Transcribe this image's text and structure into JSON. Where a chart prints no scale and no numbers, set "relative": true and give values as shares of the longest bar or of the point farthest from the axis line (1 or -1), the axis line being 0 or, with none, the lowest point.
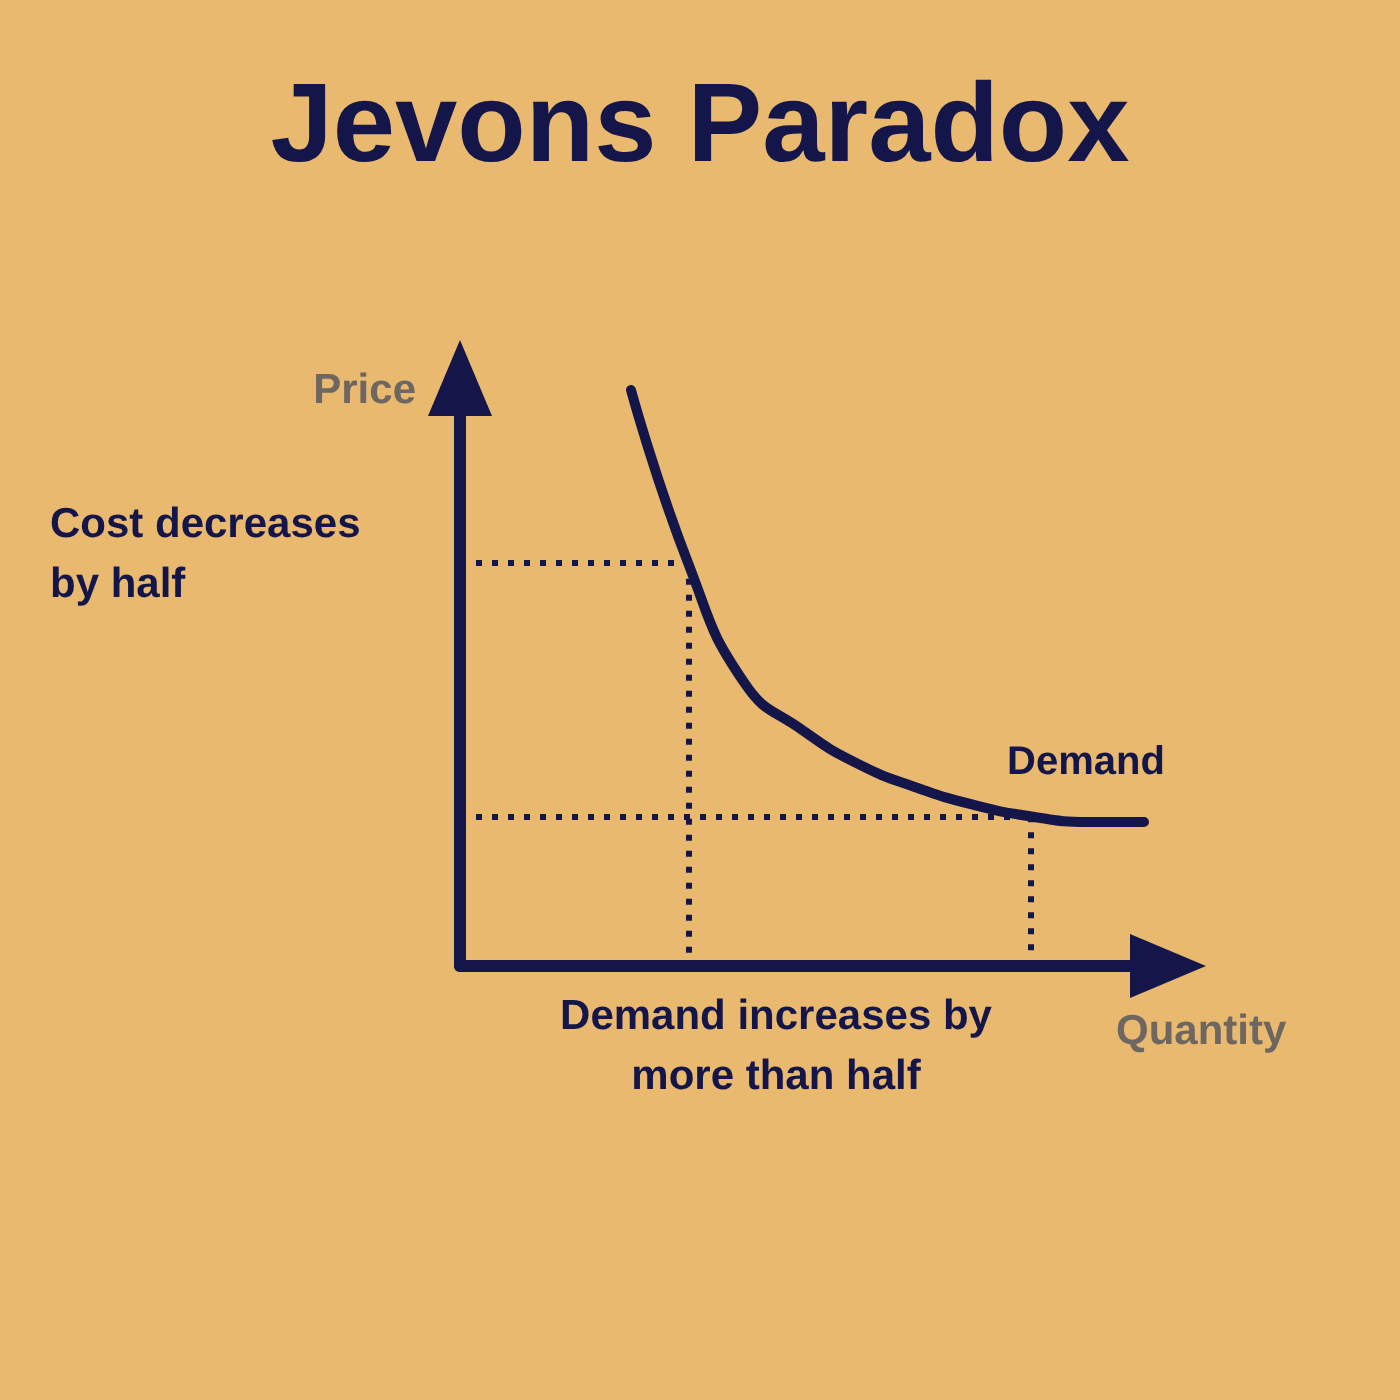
{
  "chart_data": {
    "type": "line",
    "title": "Jevons Paradox",
    "xlabel": "Quantity",
    "ylabel": "Price",
    "relative": true,
    "categories": [
      null,
      null,
      null,
      null,
      null,
      null,
      null,
      null,
      null,
      null,
      null,
      null,
      null
    ],
    "series": [
      {
        "name": "Demand",
        "color": "#14164a",
        "values": [
          null,
          null,
          null,
          1,
          0.7,
          0.49,
          0.41,
          0.35,
          0.31,
          0.28,
          0.26,
          0.25,
          0.25
        ]
      }
    ],
    "ref_lines": [
      {
        "axis": "y",
        "value": 0.7,
        "line_style": "dotted"
      },
      {
        "axis": "y",
        "value": 0.26,
        "line_style": "dotted"
      }
    ],
    "annotations": [
      "Cost decreases\nby half",
      "Demand increases by\nmore than half"
    ],
    "marker": "none",
    "line_style": "solid",
    "grid": false,
    "legend": false
  }
}
